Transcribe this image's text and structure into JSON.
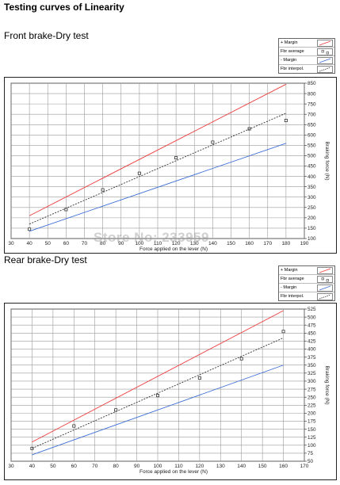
{
  "page": {
    "title": "Testing curves of Linearity",
    "watermark": "Store No: 233959"
  },
  "chart_data": [
    {
      "type": "line",
      "title": "Front brake-Dry test",
      "xlabel": "Force applied on the lever (N)",
      "ylabel": "Braking force (N)",
      "xlim": [
        30,
        190
      ],
      "ylim": [
        100,
        850
      ],
      "x_ticks": [
        30,
        40,
        50,
        60,
        70,
        80,
        90,
        100,
        110,
        120,
        130,
        140,
        150,
        160,
        170,
        180,
        190
      ],
      "y_ticks": [
        100,
        150,
        200,
        250,
        300,
        350,
        400,
        450,
        500,
        550,
        600,
        650,
        700,
        750,
        800,
        850
      ],
      "grid": true,
      "legend": {
        "placement": "top-right",
        "entries": [
          "+ Margin",
          "Fbr average",
          "- Margin",
          "Fbr interpol."
        ]
      },
      "series": [
        {
          "name": "+ Margin",
          "color": "#ee3b3b",
          "style": "solid",
          "x": [
            40,
            180
          ],
          "y": [
            210,
            845
          ]
        },
        {
          "name": "Fbr average",
          "color": "#333333",
          "style": "markers",
          "x": [
            40,
            60,
            80,
            100,
            120,
            140,
            160,
            180
          ],
          "y": [
            145,
            240,
            335,
            415,
            490,
            565,
            630,
            670
          ]
        },
        {
          "name": "- Margin",
          "color": "#3d6fd6",
          "style": "solid",
          "x": [
            40,
            180
          ],
          "y": [
            135,
            560
          ]
        },
        {
          "name": "Fbr interpol.",
          "color": "#333333",
          "style": "dashed",
          "x": [
            40,
            180
          ],
          "y": [
            170,
            705
          ]
        }
      ]
    },
    {
      "type": "line",
      "title": "Rear brake-Dry test",
      "xlabel": "Force applied on the lever (N)",
      "ylabel": "Braking force (N)",
      "xlim": [
        30,
        170
      ],
      "ylim": [
        50,
        525
      ],
      "x_ticks": [
        30,
        40,
        50,
        60,
        70,
        80,
        90,
        100,
        110,
        120,
        130,
        140,
        150,
        160,
        170
      ],
      "y_ticks": [
        50,
        75,
        100,
        125,
        150,
        175,
        200,
        225,
        250,
        275,
        300,
        325,
        350,
        375,
        400,
        425,
        450,
        475,
        500,
        525
      ],
      "grid": true,
      "legend": {
        "placement": "top-right",
        "entries": [
          "+ Margin",
          "Fbr average",
          "- Margin",
          "Fbr interpol."
        ]
      },
      "series": [
        {
          "name": "+ Margin",
          "color": "#ee3b3b",
          "style": "solid",
          "x": [
            40,
            160
          ],
          "y": [
            110,
            520
          ]
        },
        {
          "name": "Fbr average",
          "color": "#333333",
          "style": "markers",
          "x": [
            40,
            60,
            80,
            100,
            120,
            140,
            160
          ],
          "y": [
            90,
            160,
            210,
            255,
            310,
            370,
            455
          ]
        },
        {
          "name": "- Margin",
          "color": "#3d6fd6",
          "style": "solid",
          "x": [
            40,
            160
          ],
          "y": [
            70,
            350
          ]
        },
        {
          "name": "Fbr interpol.",
          "color": "#333333",
          "style": "dashed",
          "x": [
            40,
            160
          ],
          "y": [
            90,
            435
          ]
        }
      ]
    }
  ]
}
